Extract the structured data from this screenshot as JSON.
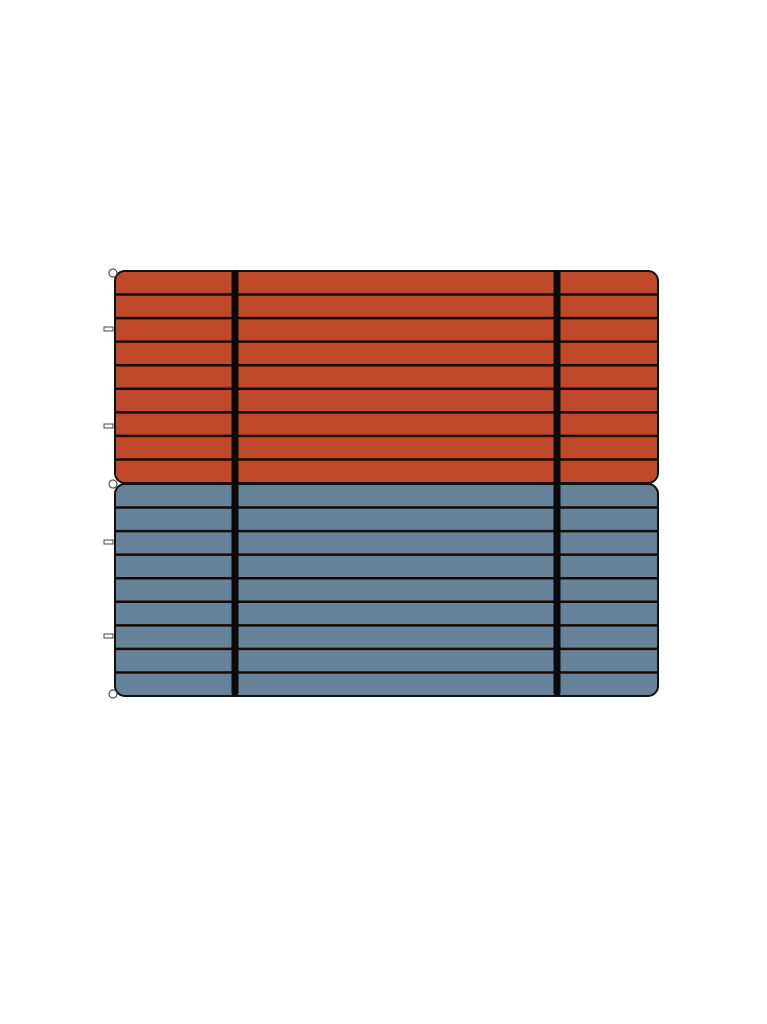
{
  "panels": [
    {
      "name": "top-panel",
      "color": "#c0492a",
      "slats": 9
    },
    {
      "name": "bottom-panel",
      "color": "#668399",
      "slats": 9
    }
  ],
  "colors": {
    "outline": "#111111",
    "strap": "#0a0a0a",
    "background": "#ffffff"
  },
  "straps": 2
}
